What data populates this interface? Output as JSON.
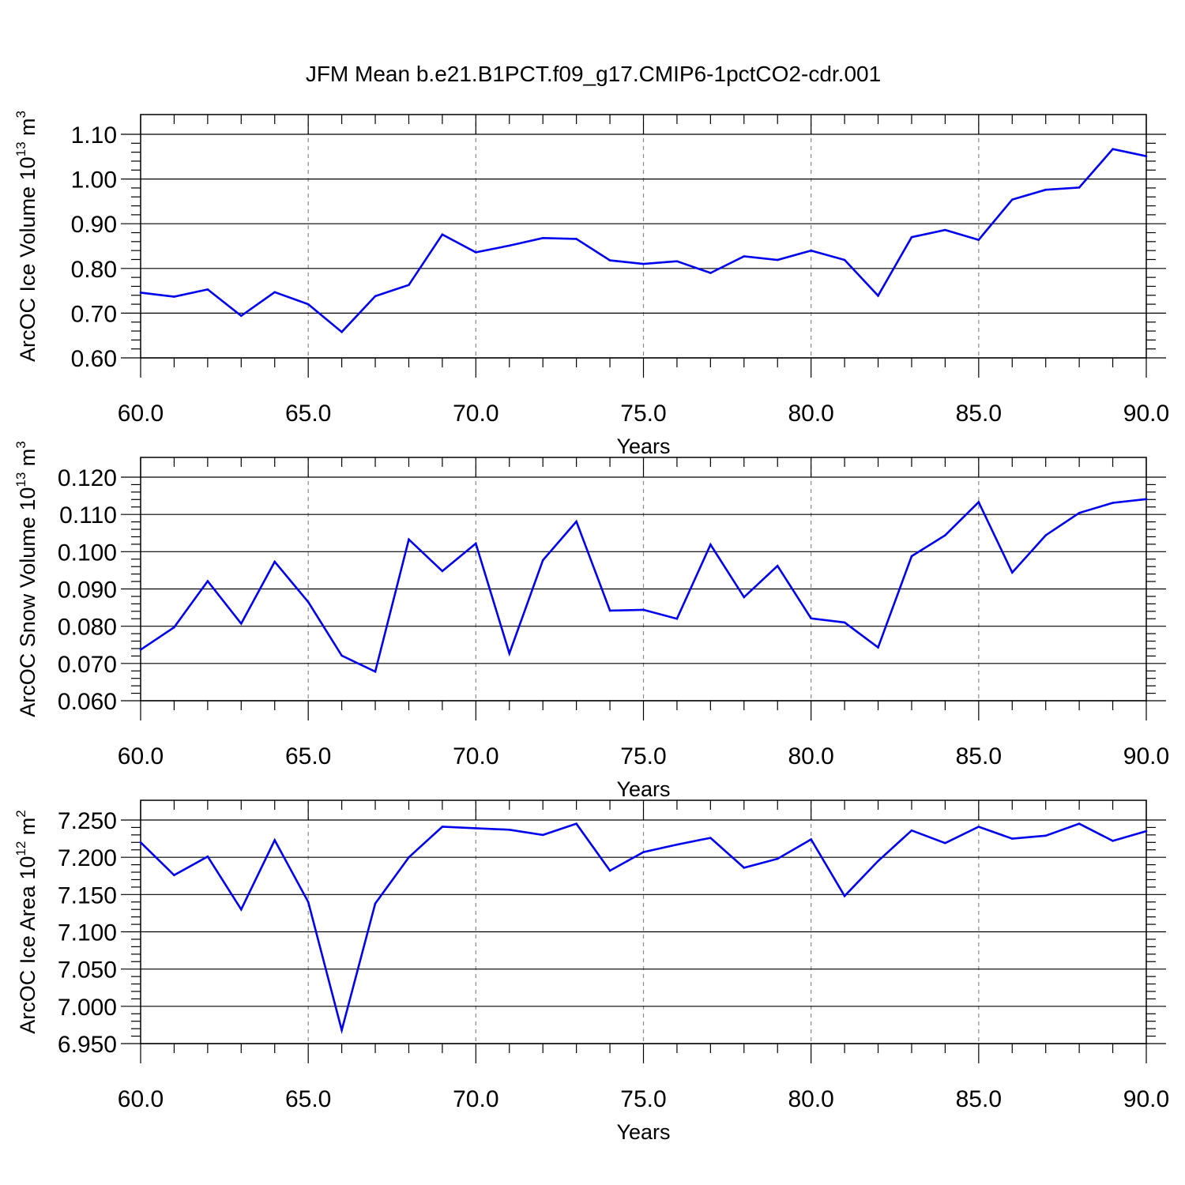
{
  "title": "JFM Mean b.e21.B1PCT.f09_g17.CMIP6-1pctCO2-cdr.001",
  "series_color": "#0000ee",
  "chart_data": [
    {
      "type": "line",
      "ylabel": {
        "main": "ArcOC Ice Volume 10",
        "exp": "13",
        "unit": " m",
        "unit_exp": "3"
      },
      "xlabel": "Years",
      "xlim": [
        60,
        90
      ],
      "ylim": [
        0.6,
        1.1
      ],
      "xticks": [
        "60.0",
        "65.0",
        "70.0",
        "75.0",
        "80.0",
        "85.0",
        "90.0"
      ],
      "yticks": [
        "0.60",
        "0.70",
        "0.80",
        "0.90",
        "1.00",
        "1.10"
      ],
      "grid": "vertical dashed at major x ticks",
      "x": [
        60,
        61,
        62,
        63,
        64,
        65,
        66,
        67,
        68,
        69,
        70,
        71,
        72,
        73,
        74,
        75,
        76,
        77,
        78,
        79,
        80,
        81,
        82,
        83,
        84,
        85,
        86,
        87,
        88,
        89,
        90
      ],
      "values": [
        0.746,
        0.737,
        0.753,
        0.694,
        0.747,
        0.72,
        0.658,
        0.738,
        0.763,
        0.876,
        0.836,
        0.851,
        0.868,
        0.866,
        0.818,
        0.81,
        0.816,
        0.79,
        0.827,
        0.819,
        0.84,
        0.819,
        0.739,
        0.87,
        0.886,
        0.864,
        0.954,
        0.976,
        0.981,
        1.067,
        1.051
      ]
    },
    {
      "type": "line",
      "ylabel": {
        "main": "ArcOC Snow Volume 10",
        "exp": "13",
        "unit": " m",
        "unit_exp": "3"
      },
      "xlabel": "Years",
      "xlim": [
        60,
        90
      ],
      "ylim": [
        0.06,
        0.12
      ],
      "xticks": [
        "60.0",
        "65.0",
        "70.0",
        "75.0",
        "80.0",
        "85.0",
        "90.0"
      ],
      "yticks": [
        "0.060",
        "0.070",
        "0.080",
        "0.090",
        "0.100",
        "0.110",
        "0.120"
      ],
      "grid": "vertical dashed at major x ticks",
      "x": [
        60,
        61,
        62,
        63,
        64,
        65,
        66,
        67,
        68,
        69,
        70,
        71,
        72,
        73,
        74,
        75,
        76,
        77,
        78,
        79,
        80,
        81,
        82,
        83,
        84,
        85,
        86,
        87,
        88,
        89,
        90
      ],
      "values": [
        0.0737,
        0.0797,
        0.0921,
        0.0807,
        0.0973,
        0.0865,
        0.0721,
        0.0678,
        0.1033,
        0.0948,
        0.1022,
        0.0727,
        0.0977,
        0.1081,
        0.0842,
        0.0844,
        0.082,
        0.1019,
        0.0878,
        0.0962,
        0.0821,
        0.081,
        0.0743,
        0.0988,
        0.1044,
        0.1133,
        0.0944,
        0.1044,
        0.1104,
        0.1131,
        0.1141
      ]
    },
    {
      "type": "line",
      "ylabel": {
        "main": "ArcOC Ice Area 10",
        "exp": "12",
        "unit": " m",
        "unit_exp": "2"
      },
      "xlabel": "Years",
      "xlim": [
        60,
        90
      ],
      "ylim": [
        6.95,
        7.25
      ],
      "xticks": [
        "60.0",
        "65.0",
        "70.0",
        "75.0",
        "80.0",
        "85.0",
        "90.0"
      ],
      "yticks": [
        "6.950",
        "7.000",
        "7.050",
        "7.100",
        "7.150",
        "7.200",
        "7.250"
      ],
      "grid": "vertical dashed at major x ticks",
      "x": [
        60,
        61,
        62,
        63,
        64,
        65,
        66,
        67,
        68,
        69,
        70,
        71,
        72,
        73,
        74,
        75,
        76,
        77,
        78,
        79,
        80,
        81,
        82,
        83,
        84,
        85,
        86,
        87,
        88,
        89,
        90
      ],
      "values": [
        7.22,
        7.176,
        7.201,
        7.13,
        7.223,
        7.14,
        6.968,
        7.138,
        7.2,
        7.241,
        7.239,
        7.237,
        7.23,
        7.245,
        7.182,
        7.207,
        7.217,
        7.226,
        7.186,
        7.198,
        7.224,
        7.148,
        7.195,
        7.236,
        7.219,
        7.241,
        7.225,
        7.229,
        7.245,
        7.222,
        7.235
      ]
    }
  ]
}
